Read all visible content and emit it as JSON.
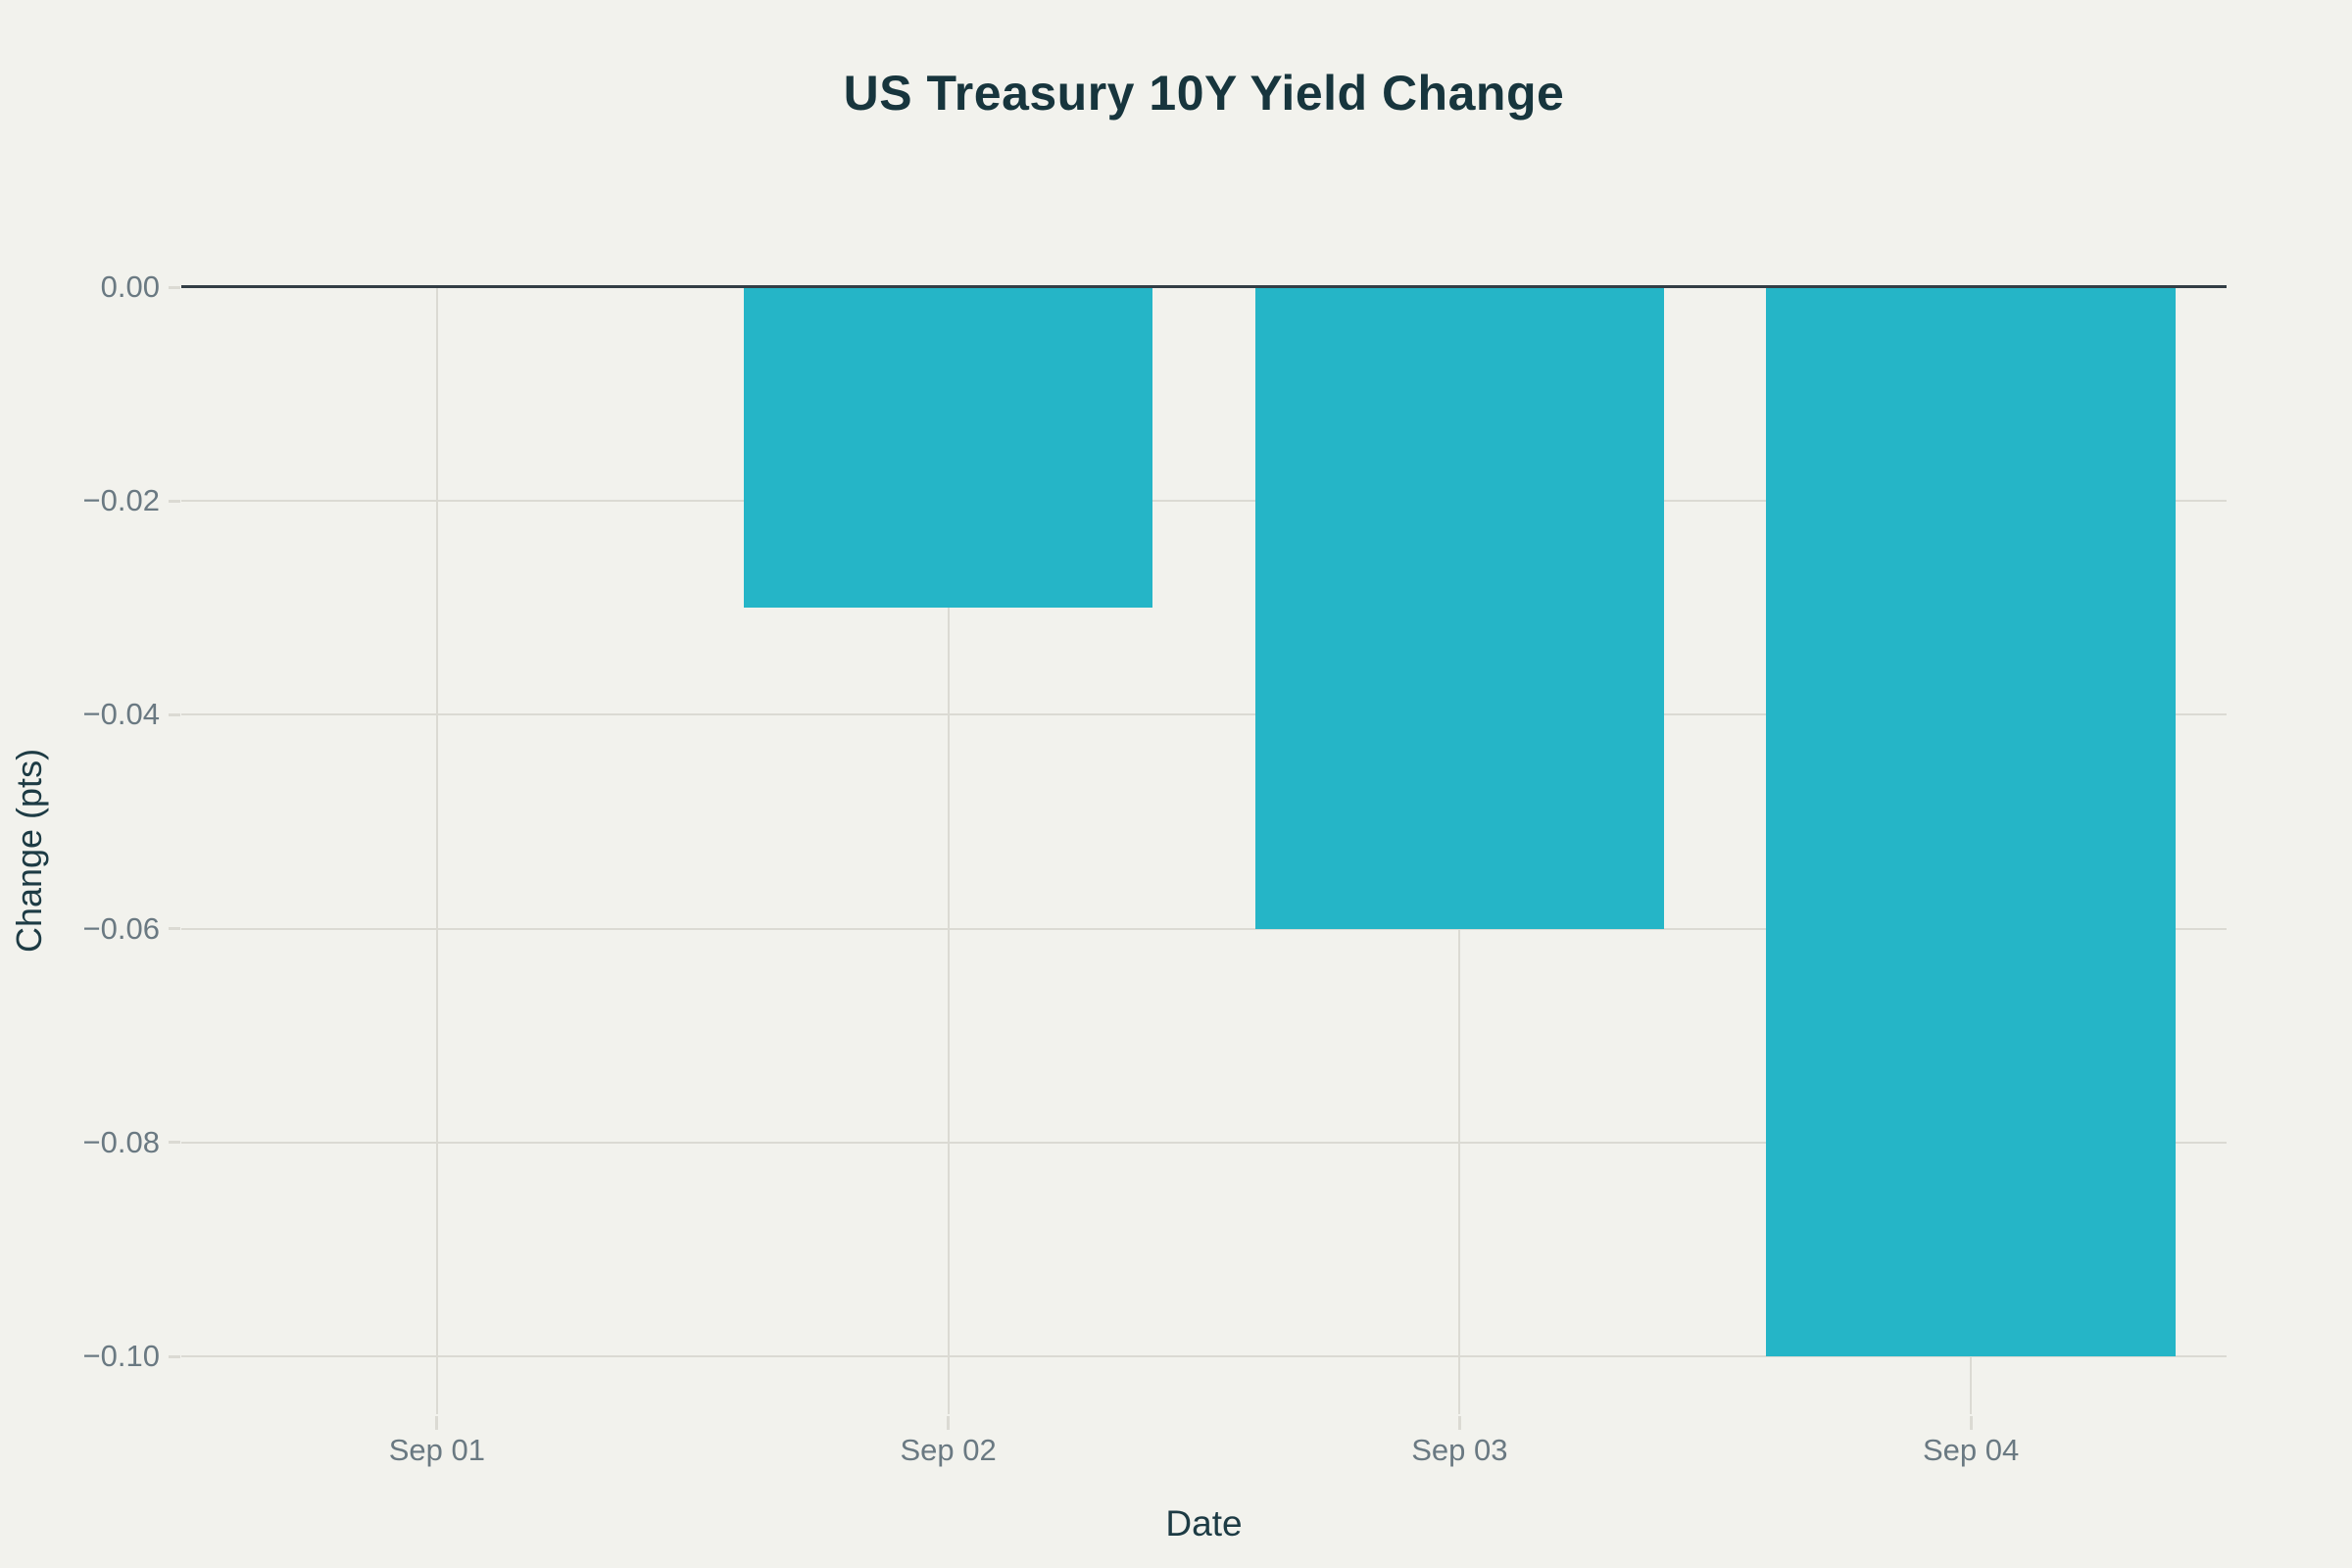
{
  "chart_data": {
    "type": "bar",
    "title": "US Treasury 10Y Yield Change",
    "xlabel": "Date",
    "ylabel": "Change (pts)",
    "categories": [
      "Sep 01",
      "Sep 02",
      "Sep 03",
      "Sep 04"
    ],
    "values": [
      0,
      -0.03,
      -0.06,
      -0.1
    ],
    "ylim": [
      -0.1054,
      0
    ],
    "y_tick_values": [
      0,
      -0.02,
      -0.04,
      -0.06,
      -0.08,
      -0.1
    ],
    "y_tick_labels": [
      "0.00",
      "−0.02",
      "−0.04",
      "−0.06",
      "−0.08",
      "−0.10"
    ],
    "grid": true,
    "legend": "none",
    "bar_gap_fraction": 0.2
  },
  "style": {
    "background": "#f2f2ed",
    "bar_color": "#25b5c7",
    "title_color": "#17353d",
    "axis_title_color": "#1d3b44",
    "tick_label_color": "#6a7982",
    "gridline_color": "#dbdad3",
    "zero_line_color": "#333e45"
  }
}
